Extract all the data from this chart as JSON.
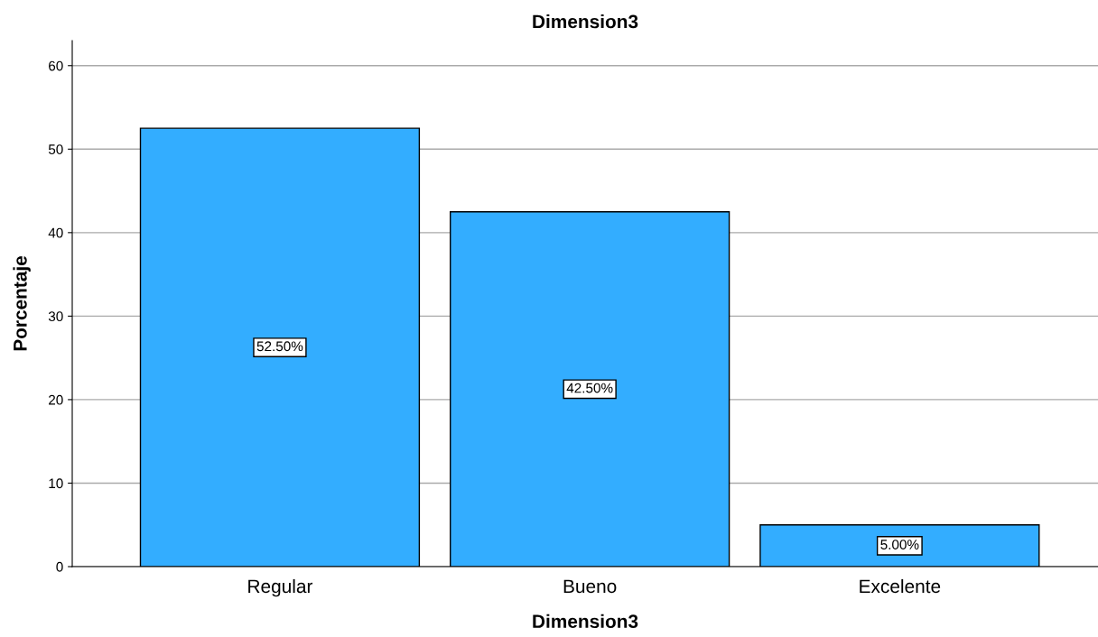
{
  "chart_data": {
    "type": "bar",
    "title": "Dimension3",
    "xlabel": "Dimension3",
    "ylabel": "Porcentaje",
    "categories": [
      "Regular",
      "Bueno",
      "Excelente"
    ],
    "values": [
      52.5,
      42.5,
      5.0
    ],
    "value_labels": [
      "52.50%",
      "42.50%",
      "5.00%"
    ],
    "color": "#33adff",
    "ylim": [
      0,
      63
    ],
    "yticks": [
      0,
      10,
      20,
      30,
      40,
      50,
      60
    ],
    "grid": "y"
  }
}
